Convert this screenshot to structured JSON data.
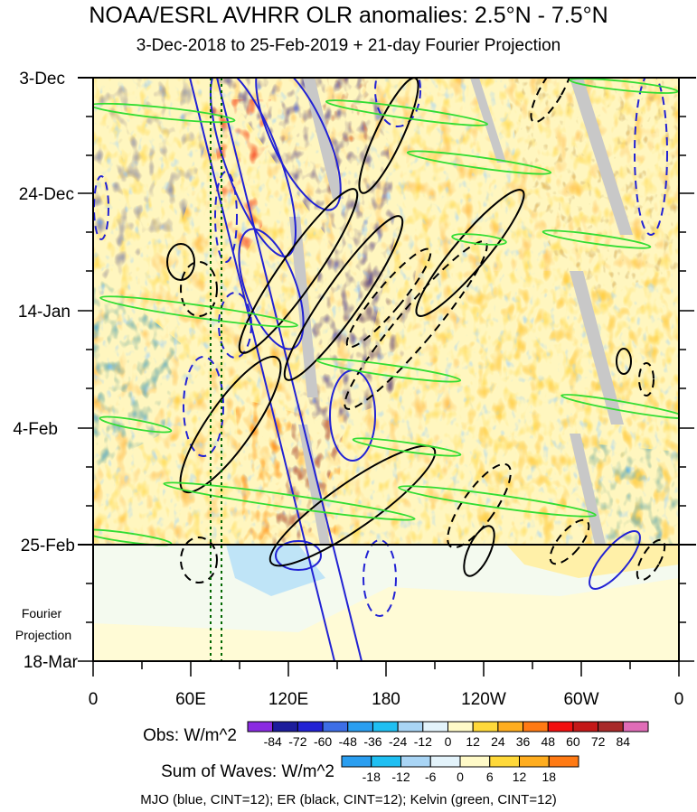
{
  "chart_data": {
    "type": "heatmap",
    "title": "NOAA/ESRL AVHRR OLR anomalies: 2.5°N - 7.5°N",
    "subtitle": "3-Dec-2018 to 25-Feb-2019 + 21-day Fourier Projection",
    "x_axis": {
      "ticks": [
        "0",
        "60E",
        "120E",
        "180",
        "120W",
        "60W",
        "0"
      ]
    },
    "y_axis": {
      "ticks": [
        "3-Dec",
        "24-Dec",
        "14-Jan",
        "4-Feb",
        "25-Feb",
        "18-Mar"
      ],
      "projection_label_lines": [
        "Fourier",
        "Projection"
      ]
    },
    "obs_colorbar": {
      "label": "Obs: W/m^2",
      "ticks": [
        "-84",
        "-72",
        "-60",
        "-48",
        "-36",
        "-24",
        "-12",
        "0",
        "12",
        "24",
        "36",
        "48",
        "60",
        "72",
        "84"
      ],
      "colors": [
        "#8a2be2",
        "#1c1c9c",
        "#2222d4",
        "#3d6ee6",
        "#2a9ef0",
        "#1fbff2",
        "#a9d5f5",
        "#e3f3fb",
        "#fffac8",
        "#ffd93a",
        "#ffad1f",
        "#ff7a14",
        "#f20f0f",
        "#c41818",
        "#a82a2a",
        "#e06cb7"
      ]
    },
    "waves_colorbar": {
      "label": "Sum of Waves: W/m^2",
      "ticks": [
        "-18",
        "-12",
        "-6",
        "0",
        "6",
        "12",
        "18"
      ],
      "colors": [
        "#2a9ef0",
        "#1fbff2",
        "#a9d5f5",
        "#e3f3fb",
        "#fffac8",
        "#ffd93a",
        "#ffad1f",
        "#ff7a14"
      ]
    },
    "footer": "MJO (blue, CINT=12); ER (black, CINT=12); Kelvin (green, CINT=12)"
  }
}
